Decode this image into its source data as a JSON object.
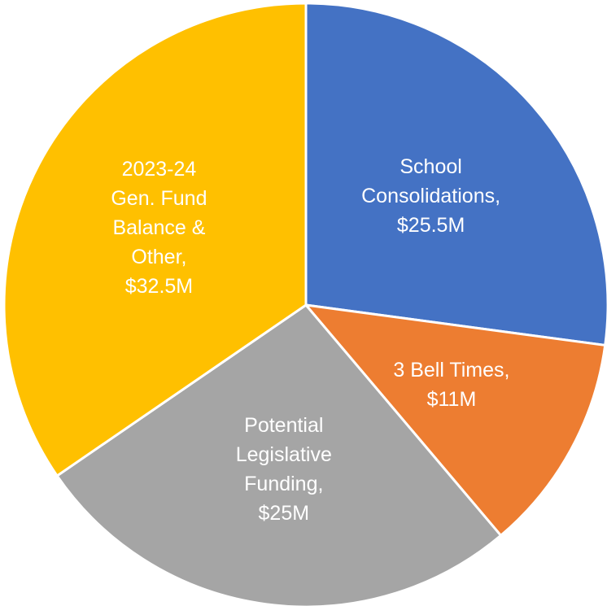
{
  "chart_data": {
    "type": "pie",
    "categories": [
      "School Consolidations,",
      "3 Bell Times,",
      "Potential Legislative Funding,",
      "2023-24 Gen. Fund Balance & Other,"
    ],
    "values": [
      25.5,
      11,
      25,
      32.5
    ],
    "value_labels": [
      "$25.5M",
      "$11M",
      "$25M",
      "$32.5M"
    ],
    "colors": [
      "#4472c4",
      "#ed7d31",
      "#a5a5a5",
      "#ffc000"
    ]
  }
}
